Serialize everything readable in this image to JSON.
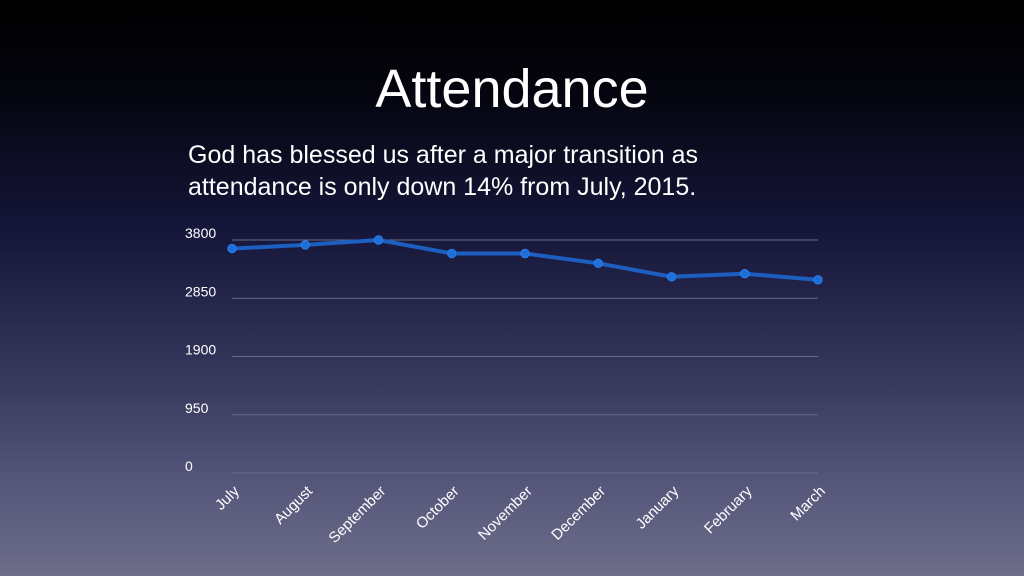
{
  "slide": {
    "title": "Attendance",
    "subtitle_lines": [
      "God has blessed us after a major transition as",
      "attendance is only down 14% from July, 2015."
    ]
  },
  "colors": {
    "series_line": "#1c5fc0",
    "series_marker": "#1f6fd6",
    "gridline": "#6a6b86",
    "text": "#ffffff"
  },
  "chart_data": {
    "type": "line",
    "categories": [
      "July",
      "August",
      "September",
      "October",
      "November",
      "December",
      "January",
      "February",
      "March"
    ],
    "series": [
      {
        "values": [
          3660,
          3720,
          3800,
          3580,
          3580,
          3420,
          3200,
          3250,
          3150
        ]
      }
    ],
    "yticks": [
      0,
      950,
      1900,
      2850,
      3800
    ],
    "ytick_labels": [
      "0",
      "950",
      "1900",
      "2850",
      "3800"
    ],
    "ylim": [
      0,
      3800
    ],
    "grid": true,
    "legend": "none",
    "title": "",
    "xlabel": "",
    "ylabel": ""
  }
}
